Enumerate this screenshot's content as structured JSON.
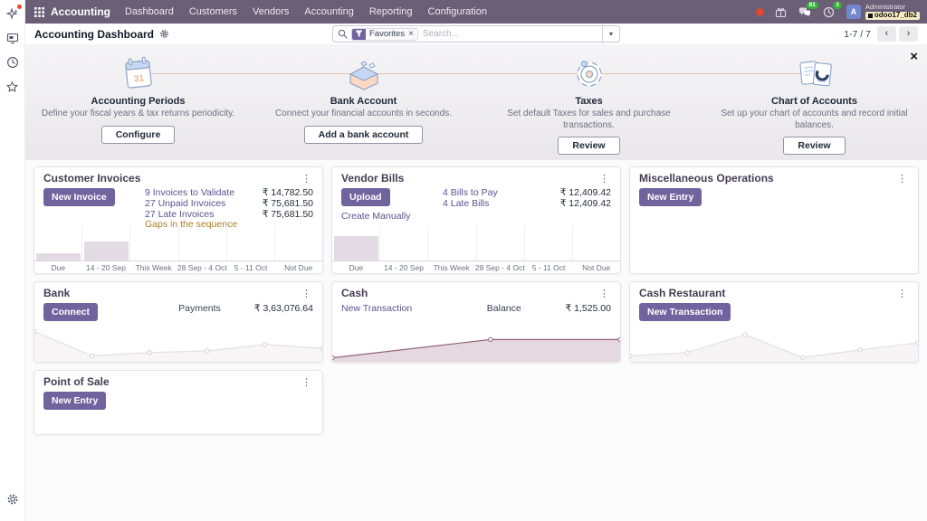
{
  "navbar": {
    "app_name": "Accounting",
    "menus": [
      "Dashboard",
      "Customers",
      "Vendors",
      "Accounting",
      "Reporting",
      "Configuration"
    ],
    "systray": {
      "chat_badge": "81",
      "activity_badge": "3",
      "avatar_letter": "A",
      "user_name": "Administrator",
      "database": "odoo17_db2"
    }
  },
  "control_panel": {
    "breadcrumb": "Accounting Dashboard",
    "filter_label": "Favorites",
    "filter_remove": "×",
    "search_placeholder": "Search...",
    "pager_text": "1-7 / 7",
    "pager_prev": "‹",
    "pager_next": "›"
  },
  "onboarding": {
    "close_label": "×",
    "steps": [
      {
        "title": "Accounting Periods",
        "description": "Define your fiscal years & tax returns periodicity.",
        "button": "Configure",
        "icon": "calendar-illustration-icon"
      },
      {
        "title": "Bank Account",
        "description": "Connect your financial accounts in seconds.",
        "button": "Add a bank account",
        "icon": "bank-illustration-icon"
      },
      {
        "title": "Taxes",
        "description": "Set default Taxes for sales and purchase transactions.",
        "button": "Review",
        "icon": "gear-illustration-icon"
      },
      {
        "title": "Chart of Accounts",
        "description": "Set up your chart of accounts and record initial balances.",
        "button": "Review",
        "icon": "chart-docs-illustration-icon"
      }
    ]
  },
  "cards": {
    "customer_invoices": {
      "title": "Customer Invoices",
      "button": "New Invoice",
      "kebab": "⋮",
      "kpis": [
        {
          "label": "9 Invoices to Validate",
          "amount": "₹ 14,782.50"
        },
        {
          "label": "27 Unpaid Invoices",
          "amount": "₹ 75,681.50"
        },
        {
          "label": "27 Late Invoices",
          "amount": "₹ 75,681.50"
        }
      ],
      "warning": "Gaps in the sequence"
    },
    "vendor_bills": {
      "title": "Vendor Bills",
      "button": "Upload",
      "link": "Create Manually",
      "kebab": "⋮",
      "kpis": [
        {
          "label": "4 Bills to Pay",
          "amount": "₹ 12,409.42"
        },
        {
          "label": "4 Late Bills",
          "amount": "₹ 12,409.42"
        }
      ]
    },
    "misc_operations": {
      "title": "Miscellaneous Operations",
      "button": "New Entry",
      "kebab": "⋮"
    },
    "bank": {
      "title": "Bank",
      "button": "Connect",
      "kpi_label": "Payments",
      "kpi_amount": "₹ 3,63,076.64",
      "kebab": "⋮"
    },
    "cash": {
      "title": "Cash",
      "link": "New Transaction",
      "kpi_label": "Balance",
      "kpi_amount": "₹ 1,525.00",
      "kebab": "⋮"
    },
    "cash_restaurant": {
      "title": "Cash Restaurant",
      "button": "New Transaction",
      "kebab": "⋮"
    },
    "point_of_sale": {
      "title": "Point of Sale",
      "button": "New Entry",
      "kebab": "⋮"
    }
  },
  "chart_data": [
    {
      "name": "customer-invoices-due-bars",
      "type": "bar",
      "categories": [
        "Due",
        "14 - 20 Sep",
        "This Week",
        "28 Sep - 4 Oct",
        "5 - 11 Oct",
        "Not Due"
      ],
      "values": [
        20,
        55,
        0,
        0,
        0,
        0
      ],
      "unit": "relative_height_percent",
      "bar_color": "#e3dbe4"
    },
    {
      "name": "vendor-bills-due-bars",
      "type": "bar",
      "categories": [
        "Due",
        "14 - 20 Sep",
        "This Week",
        "28 Sep - 4 Oct",
        "5 - 11 Oct",
        "Not Due"
      ],
      "values": [
        70,
        0,
        0,
        0,
        0,
        0
      ],
      "unit": "relative_height_percent",
      "bar_color": "#e3dbe4"
    },
    {
      "name": "bank-balance-trend",
      "type": "line",
      "points": [
        0.85,
        0.1,
        0.2,
        0.25,
        0.45,
        0.33
      ],
      "line_color": "#e5dee3",
      "fill_color": "#f7f5f6",
      "marker_color": "#d7d0d5"
    },
    {
      "name": "cash-balance-trend",
      "type": "line",
      "points": [
        0.04,
        0.6,
        0.6
      ],
      "x": [
        0,
        0.55,
        1
      ],
      "line_color": "#96607b",
      "fill_color": "#e6d8e0",
      "marker_color": "#96607b"
    },
    {
      "name": "cash-restaurant-balance-trend",
      "type": "line",
      "points": [
        0.1,
        0.2,
        0.75,
        0.05,
        0.28,
        0.5
      ],
      "line_color": "#e5e0e3",
      "fill_color": "#f6f4f5",
      "marker_color": "#d9d3d6"
    }
  ],
  "colors": {
    "navbar": "#6a5f77",
    "primary_button": "#71639e",
    "link": "#5c518f",
    "warning_text": "#ad7e29",
    "badge_green": "#35b235",
    "alert_red": "#e0492f"
  }
}
